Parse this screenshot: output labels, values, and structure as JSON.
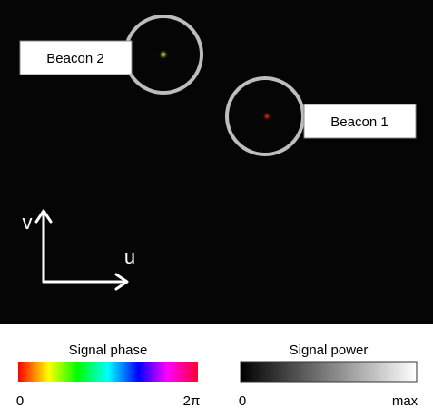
{
  "image": {
    "beacons": [
      {
        "label": "Beacon 2"
      },
      {
        "label": "Beacon 1"
      }
    ],
    "axes": {
      "vertical": "v",
      "horizontal": "u"
    }
  },
  "colorbars": [
    {
      "title": "Signal phase",
      "min_label": "0",
      "max_label": "2π"
    },
    {
      "title": "Signal power",
      "min_label": "0",
      "max_label": "max"
    }
  ]
}
